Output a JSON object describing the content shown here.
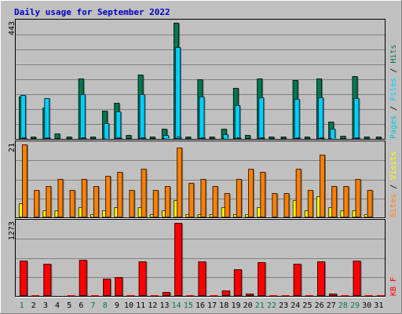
{
  "title": "Daily usage for September 2022",
  "colors": {
    "background": "#c0c0c0",
    "hits": "#007850",
    "files": "#00d0ff",
    "pages": "#00c8d8",
    "visits": "#ffff00",
    "sites": "#ff8000",
    "kbytes": "#ff0000",
    "weekend_label": "#007850",
    "weekday_label": "#000000"
  },
  "chart_data": [
    {
      "type": "bar",
      "name": "hits-files-pages",
      "max_label": "443",
      "ylim": [
        0,
        443
      ],
      "legend": [
        "Pages",
        "Files",
        "Hits"
      ],
      "categories": [
        "1",
        "2",
        "3",
        "4",
        "5",
        "6",
        "7",
        "8",
        "9",
        "10",
        "11",
        "12",
        "13",
        "14",
        "15",
        "16",
        "17",
        "18",
        "19",
        "20",
        "21",
        "22",
        "23",
        "24",
        "25",
        "26",
        "27",
        "28",
        "29",
        "30",
        "31"
      ],
      "series": [
        {
          "name": "Hits",
          "values": [
            162,
            8,
            121,
            22,
            8,
            230,
            8,
            108,
            138,
            14,
            245,
            8,
            38,
            442,
            10,
            228,
            8,
            38,
            194,
            15,
            230,
            10,
            10,
            225,
            10,
            230,
            65,
            12,
            240,
            10,
            8
          ]
        },
        {
          "name": "Files",
          "values": [
            168,
            0,
            155,
            0,
            0,
            170,
            0,
            60,
            105,
            0,
            170,
            0,
            15,
            350,
            0,
            162,
            0,
            18,
            130,
            0,
            158,
            0,
            0,
            152,
            0,
            160,
            38,
            0,
            155,
            0,
            0
          ]
        },
        {
          "name": "Pages",
          "values": [
            5,
            0,
            5,
            0,
            0,
            5,
            0,
            3,
            5,
            0,
            5,
            0,
            2,
            8,
            0,
            5,
            0,
            2,
            5,
            0,
            5,
            0,
            0,
            5,
            0,
            5,
            3,
            0,
            5,
            0,
            0
          ]
        }
      ]
    },
    {
      "type": "bar",
      "name": "visits-sites",
      "max_label": "21",
      "ylim": [
        0,
        21
      ],
      "legend": [
        "Sites",
        "Visits"
      ],
      "categories": [
        "1",
        "2",
        "3",
        "4",
        "5",
        "6",
        "7",
        "8",
        "9",
        "10",
        "11",
        "12",
        "13",
        "14",
        "15",
        "16",
        "17",
        "18",
        "19",
        "20",
        "21",
        "22",
        "23",
        "24",
        "25",
        "26",
        "27",
        "28",
        "29",
        "30",
        "31"
      ],
      "series": [
        {
          "name": "Visits",
          "values": [
            4,
            0,
            2,
            2,
            0,
            3,
            1,
            2,
            3,
            0,
            3,
            1,
            2,
            5,
            1,
            1,
            1,
            3,
            1,
            1,
            3,
            0,
            0,
            5,
            2,
            6,
            3,
            2,
            2,
            1,
            0
          ]
        },
        {
          "name": "Sites",
          "values": [
            21,
            8,
            9,
            11,
            8,
            11,
            9,
            12,
            13,
            8,
            14,
            8,
            9,
            20,
            10,
            11,
            9,
            7,
            11,
            14,
            13,
            7,
            7,
            14,
            8,
            18,
            9,
            9,
            11,
            8,
            0
          ]
        }
      ]
    },
    {
      "type": "bar",
      "name": "kbytes",
      "max_label": "1273",
      "ylim": [
        0,
        1273
      ],
      "legend": [
        "KB F"
      ],
      "categories": [
        "1",
        "2",
        "3",
        "4",
        "5",
        "6",
        "7",
        "8",
        "9",
        "10",
        "11",
        "12",
        "13",
        "14",
        "15",
        "16",
        "17",
        "18",
        "19",
        "20",
        "21",
        "22",
        "23",
        "24",
        "25",
        "26",
        "27",
        "28",
        "29",
        "30",
        "31"
      ],
      "series": [
        {
          "name": "KB F",
          "values": [
            615,
            15,
            565,
            0,
            15,
            635,
            15,
            295,
            325,
            15,
            600,
            15,
            70,
            1270,
            15,
            600,
            15,
            95,
            465,
            40,
            590,
            15,
            15,
            565,
            15,
            600,
            40,
            20,
            620,
            15,
            15
          ]
        }
      ]
    }
  ]
}
